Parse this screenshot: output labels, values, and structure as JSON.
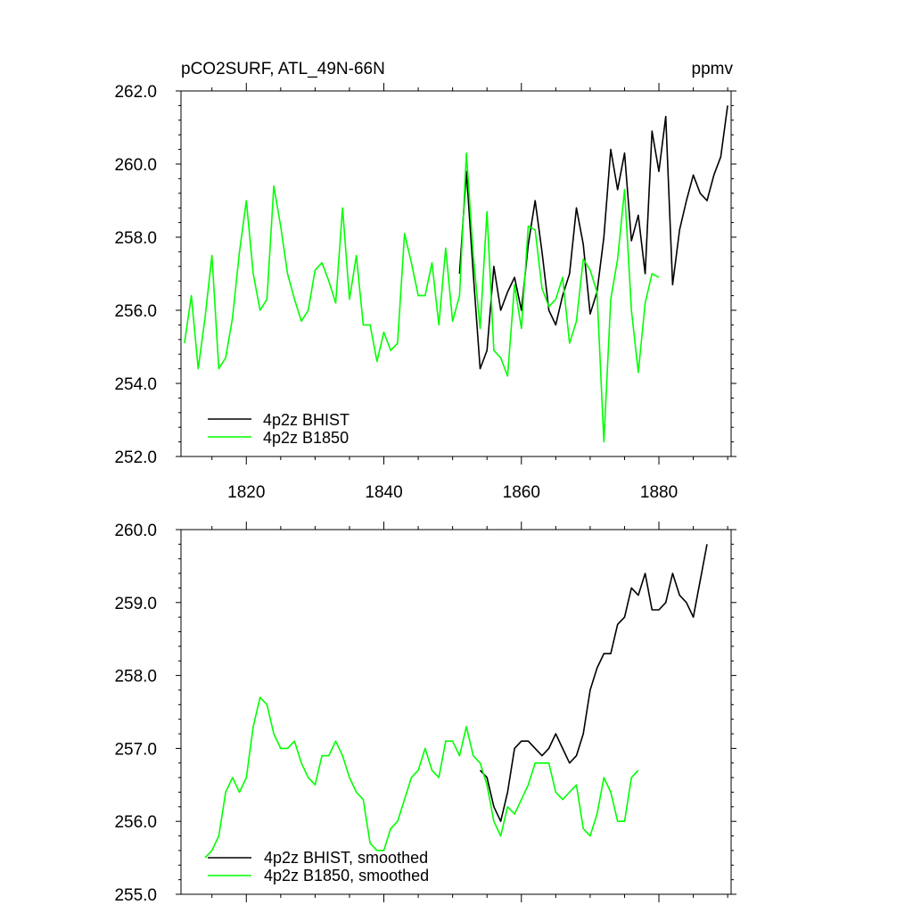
{
  "chart_data": [
    {
      "type": "line",
      "title_left": "pCO2SURF, ATL_49N-66N",
      "title_right": "ppmv",
      "xlabel": "",
      "ylabel": "",
      "xlim": [
        1810.5,
        1890.5
      ],
      "ylim": [
        252.0,
        262.0
      ],
      "x_ticks": [
        1820,
        1840,
        1860,
        1880
      ],
      "x_tick_labels": [
        "1820",
        "1840",
        "1860",
        "1880"
      ],
      "y_ticks": [
        252.0,
        254.0,
        256.0,
        258.0,
        260.0,
        262.0
      ],
      "y_tick_labels": [
        "252.0",
        "254.0",
        "256.0",
        "258.0",
        "260.0",
        "262.0"
      ],
      "legend_position": "bottom-left",
      "series": [
        {
          "name": "4p2z BHIST",
          "color": "#000000",
          "x": [
            1851,
            1852,
            1853,
            1854,
            1855,
            1856,
            1857,
            1858,
            1859,
            1860,
            1861,
            1862,
            1863,
            1864,
            1865,
            1866,
            1867,
            1868,
            1869,
            1870,
            1871,
            1872,
            1873,
            1874,
            1875,
            1876,
            1877,
            1878,
            1879,
            1880,
            1881,
            1882,
            1883,
            1884,
            1885,
            1886,
            1887,
            1888,
            1889,
            1890
          ],
          "y": [
            257.0,
            259.8,
            257.0,
            254.4,
            254.9,
            257.2,
            256.0,
            256.5,
            256.9,
            256.0,
            257.8,
            259.0,
            257.6,
            256.0,
            255.6,
            256.4,
            257.0,
            258.8,
            257.8,
            255.9,
            256.5,
            258.0,
            260.4,
            259.3,
            260.3,
            257.9,
            258.6,
            257.0,
            260.9,
            259.8,
            261.3,
            256.7,
            258.2,
            259.0,
            259.7,
            259.2,
            259.0,
            259.7,
            260.2,
            261.6
          ]
        },
        {
          "name": "4p2z B1850",
          "color": "#00ff00",
          "x": [
            1811,
            1812,
            1813,
            1814,
            1815,
            1816,
            1817,
            1818,
            1819,
            1820,
            1821,
            1822,
            1823,
            1824,
            1825,
            1826,
            1827,
            1828,
            1829,
            1830,
            1831,
            1832,
            1833,
            1834,
            1835,
            1836,
            1837,
            1838,
            1839,
            1840,
            1841,
            1842,
            1843,
            1844,
            1845,
            1846,
            1847,
            1848,
            1849,
            1850,
            1851,
            1852,
            1853,
            1854,
            1855,
            1856,
            1857,
            1858,
            1859,
            1860,
            1861,
            1862,
            1863,
            1864,
            1865,
            1866,
            1867,
            1868,
            1869,
            1870,
            1871,
            1872,
            1873,
            1874,
            1875,
            1876,
            1877,
            1878,
            1879,
            1880
          ],
          "y": [
            255.1,
            256.4,
            254.4,
            255.8,
            257.5,
            254.4,
            254.7,
            255.8,
            257.6,
            259.0,
            257.0,
            256.0,
            256.3,
            259.4,
            258.3,
            257.0,
            256.3,
            255.7,
            256.0,
            257.1,
            257.3,
            256.8,
            256.2,
            258.8,
            256.3,
            257.5,
            255.6,
            255.6,
            254.6,
            255.4,
            254.9,
            255.1,
            258.1,
            257.3,
            256.4,
            256.4,
            257.3,
            255.6,
            257.7,
            255.7,
            256.4,
            260.3,
            257.5,
            255.5,
            258.7,
            254.9,
            254.7,
            254.2,
            256.7,
            255.5,
            258.3,
            258.2,
            256.6,
            256.1,
            256.3,
            256.9,
            255.1,
            255.7,
            257.4,
            257.1,
            256.5,
            252.4,
            256.3,
            257.4,
            259.3,
            256.0,
            254.3,
            256.2,
            257.0,
            256.9
          ]
        }
      ]
    },
    {
      "type": "line",
      "title_left": "",
      "title_right": "",
      "xlabel": "",
      "ylabel": "",
      "xlim": [
        1810.5,
        1890.5
      ],
      "ylim": [
        255.0,
        260.0
      ],
      "x_ticks": [
        1820,
        1840,
        1860,
        1880
      ],
      "x_tick_labels": [],
      "y_ticks": [
        255.0,
        256.0,
        257.0,
        258.0,
        259.0,
        260.0
      ],
      "y_tick_labels": [
        "255.0",
        "256.0",
        "257.0",
        "258.0",
        "259.0",
        "260.0"
      ],
      "legend_position": "bottom-left",
      "series": [
        {
          "name": "4p2z BHIST, smoothed",
          "color": "#000000",
          "x": [
            1854,
            1855,
            1856,
            1857,
            1858,
            1859,
            1860,
            1861,
            1862,
            1863,
            1864,
            1865,
            1866,
            1867,
            1868,
            1869,
            1870,
            1871,
            1872,
            1873,
            1874,
            1875,
            1876,
            1877,
            1878,
            1879,
            1880,
            1881,
            1882,
            1883,
            1884,
            1885,
            1886,
            1887
          ],
          "y": [
            256.7,
            256.6,
            256.2,
            256.0,
            256.4,
            257.0,
            257.1,
            257.1,
            257.0,
            256.9,
            257.0,
            257.2,
            257.0,
            256.8,
            256.9,
            257.2,
            257.8,
            258.1,
            258.3,
            258.3,
            258.7,
            258.8,
            259.2,
            259.1,
            259.4,
            258.9,
            258.9,
            259.0,
            259.4,
            259.1,
            259.0,
            258.8,
            259.3,
            259.8
          ]
        },
        {
          "name": "4p2z B1850, smoothed",
          "color": "#00ff00",
          "x": [
            1814,
            1815,
            1816,
            1817,
            1818,
            1819,
            1820,
            1821,
            1822,
            1823,
            1824,
            1825,
            1826,
            1827,
            1828,
            1829,
            1830,
            1831,
            1832,
            1833,
            1834,
            1835,
            1836,
            1837,
            1838,
            1839,
            1840,
            1841,
            1842,
            1843,
            1844,
            1845,
            1846,
            1847,
            1848,
            1849,
            1850,
            1851,
            1852,
            1853,
            1854,
            1855,
            1856,
            1857,
            1858,
            1859,
            1860,
            1861,
            1862,
            1863,
            1864,
            1865,
            1866,
            1867,
            1868,
            1869,
            1870,
            1871,
            1872,
            1873,
            1874,
            1875,
            1876,
            1877
          ],
          "y": [
            255.5,
            255.6,
            255.8,
            256.4,
            256.6,
            256.4,
            256.6,
            257.3,
            257.7,
            257.6,
            257.2,
            257.0,
            257.0,
            257.1,
            256.8,
            256.6,
            256.5,
            256.9,
            256.9,
            257.1,
            256.9,
            256.6,
            256.4,
            256.3,
            255.7,
            255.6,
            255.6,
            255.9,
            256.0,
            256.3,
            256.6,
            256.7,
            257.0,
            256.7,
            256.6,
            257.1,
            257.1,
            256.9,
            257.3,
            256.9,
            256.8,
            256.5,
            256.0,
            255.8,
            256.2,
            256.1,
            256.3,
            256.5,
            256.8,
            256.8,
            256.8,
            256.4,
            256.3,
            256.4,
            256.5,
            255.9,
            255.8,
            256.1,
            256.6,
            256.4,
            256.0,
            256.0,
            256.6,
            256.7
          ]
        }
      ]
    }
  ]
}
